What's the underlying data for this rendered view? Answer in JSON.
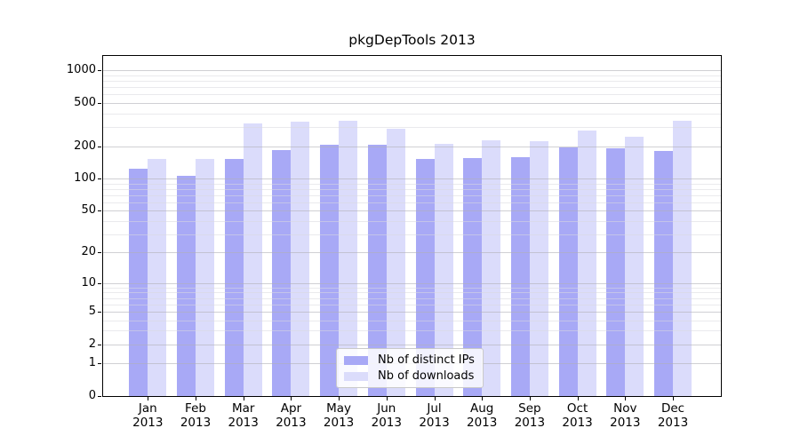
{
  "chart_data": {
    "type": "bar",
    "title": "pkgDepTools 2013",
    "categories": [
      "Jan",
      "Feb",
      "Mar",
      "Apr",
      "May",
      "Jun",
      "Jul",
      "Aug",
      "Sep",
      "Oct",
      "Nov",
      "Dec"
    ],
    "year": "2013",
    "series": [
      {
        "name": "Nb of distinct IPs",
        "color": "#a8a9f6",
        "values": [
          124,
          105,
          152,
          185,
          206,
          204,
          153,
          154,
          158,
          196,
          191,
          180
        ]
      },
      {
        "name": "Nb of downloads",
        "color": "#dbdcfb",
        "values": [
          153,
          153,
          324,
          335,
          346,
          292,
          208,
          225,
          220,
          279,
          243,
          341
        ]
      }
    ],
    "yscale": "log10(1+y)",
    "ylim": [
      0,
      1360
    ],
    "yticks": [
      0,
      1,
      2,
      5,
      10,
      20,
      50,
      100,
      200,
      500,
      1000
    ],
    "yticks_minor": [
      3,
      4,
      6,
      7,
      8,
      9,
      30,
      40,
      60,
      70,
      80,
      90,
      300,
      400,
      600,
      700,
      800,
      900
    ],
    "grid": true,
    "legend_position": "inside-bottom-center",
    "colors": {
      "grid_major": "rgba(176,176,184,0.6)",
      "grid_minor": "rgba(216,216,222,0.55)",
      "spine": "#000000",
      "background": "#ffffff",
      "text": "#000000"
    }
  }
}
